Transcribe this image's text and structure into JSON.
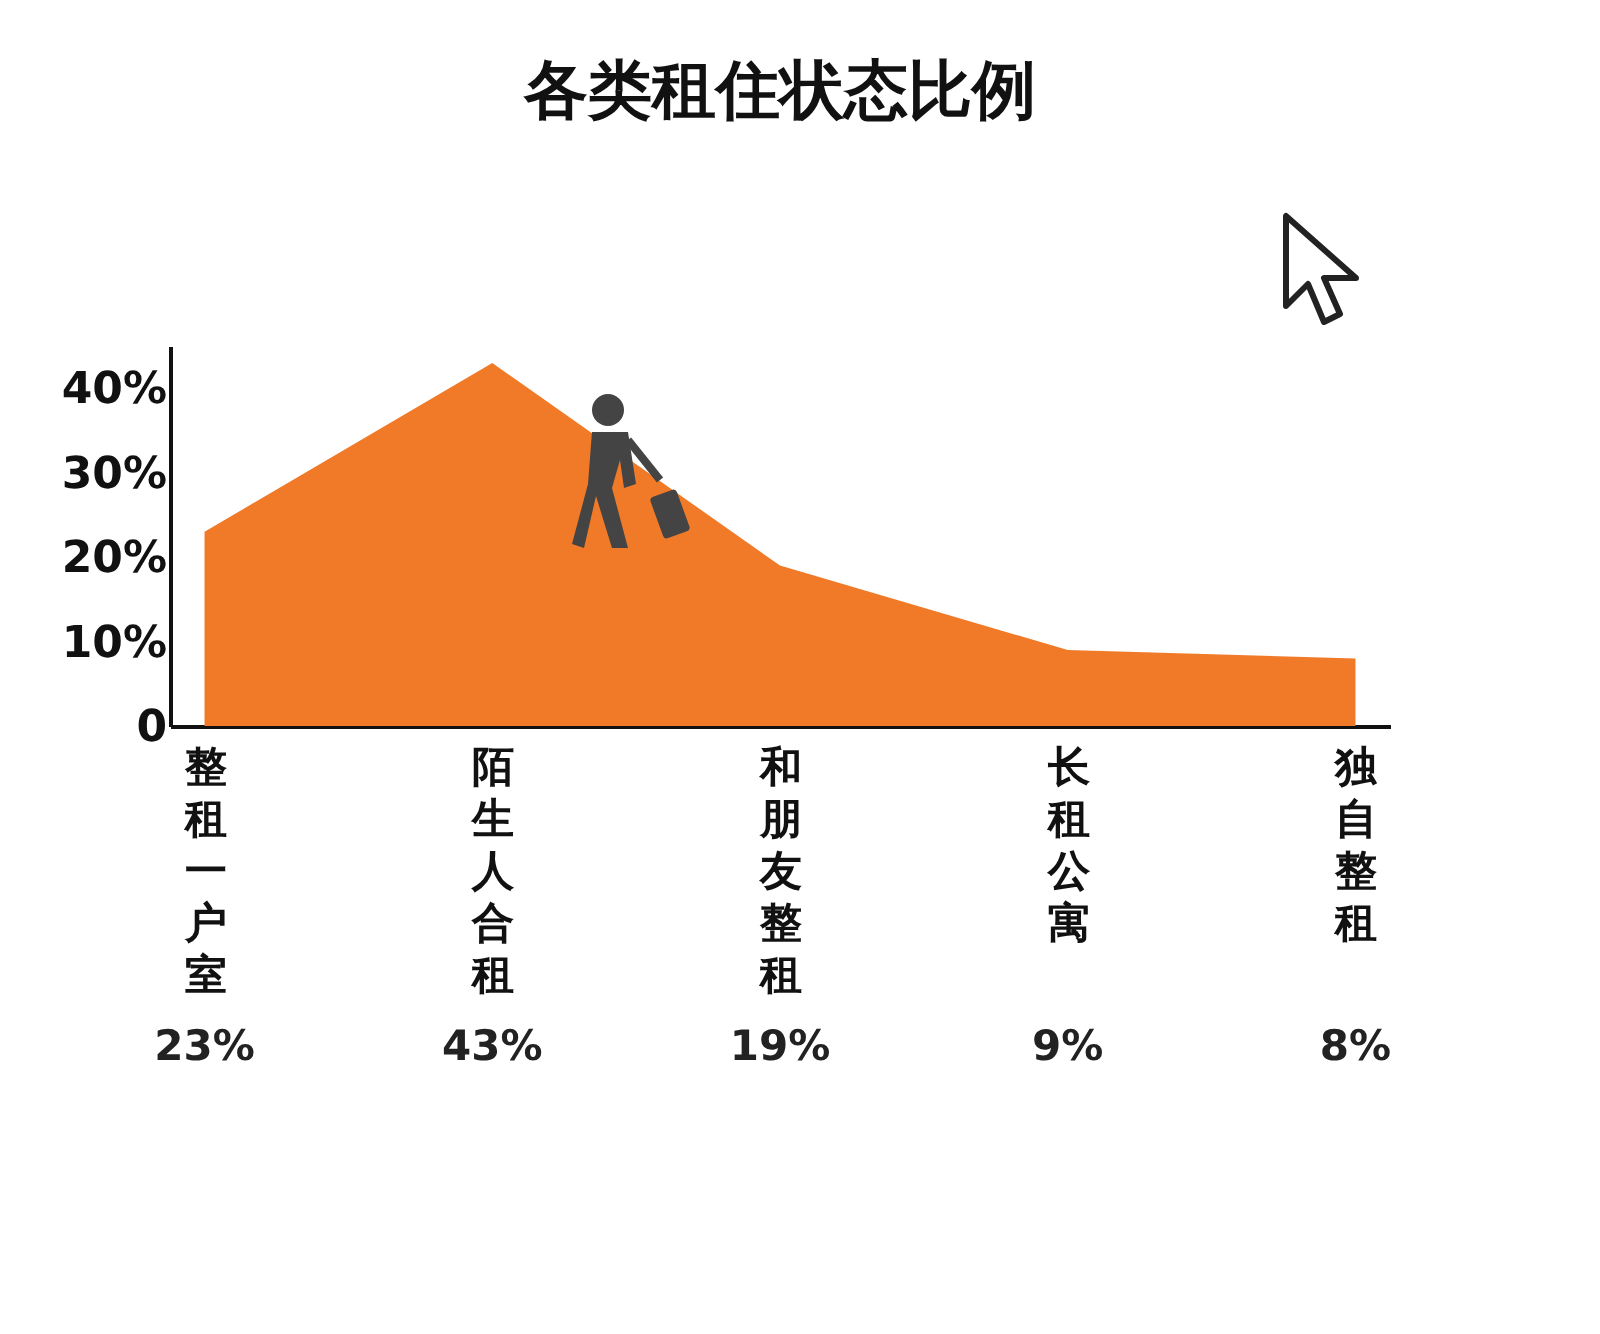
{
  "chart_data": {
    "type": "area",
    "title": "各类租住状态比例",
    "categories": [
      "整租一户室",
      "陌生人合租",
      "和朋友整租",
      "长租公寓",
      "独自整租"
    ],
    "values": [
      23,
      43,
      19,
      9,
      8
    ],
    "value_labels": [
      "23%",
      "43%",
      "19%",
      "9%",
      "8%"
    ],
    "color": "#f07a28",
    "ylim": [
      0,
      45
    ],
    "yticks": [
      0,
      {
        "value": 10,
        "label": "10%"
      },
      {
        "value": 20,
        "label": "20%"
      },
      {
        "value": 30,
        "label": "30%"
      },
      {
        "value": 40,
        "label": "40%"
      }
    ],
    "grid": false
  }
}
